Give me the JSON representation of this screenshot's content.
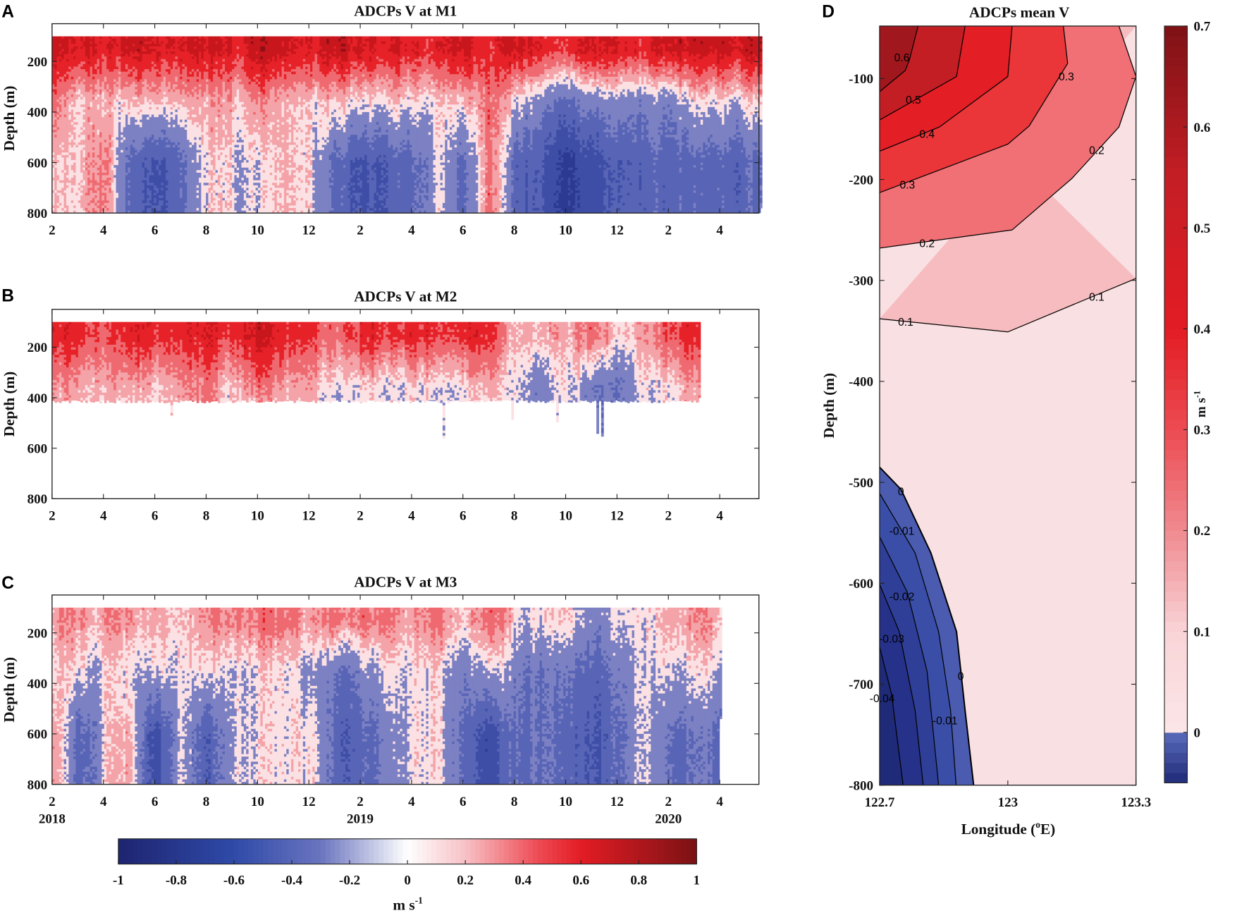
{
  "panel_letters": [
    "A",
    "B",
    "C",
    "D"
  ],
  "colorbar": {
    "ticks": [
      -1,
      -0.8,
      -0.6,
      -0.4,
      -0.2,
      0,
      0.2,
      0.4,
      0.6,
      0.8,
      1
    ],
    "tick_labels": [
      "-1",
      "-0.8",
      "-0.6",
      "-0.4",
      "-0.2",
      "0",
      "0.2",
      "0.4",
      "0.6",
      "0.8",
      "1"
    ],
    "range": [
      -1,
      1
    ],
    "unit": "m s",
    "unit_exp": "-1"
  },
  "chart_data": [
    {
      "panel": "A",
      "type": "heatmap",
      "title": "ADCPs V at M1",
      "ylabel": "Depth (m)",
      "ylim": [
        800,
        50
      ],
      "yticks": [
        200,
        400,
        600,
        800
      ],
      "ytick_labels": [
        "200",
        "400",
        "600",
        "800"
      ],
      "x_unit": "months since 2018-02",
      "xlim": [
        0,
        27.6
      ],
      "xticks": [
        0,
        2,
        4,
        6,
        8,
        10,
        12,
        14,
        16,
        18,
        20,
        22,
        24,
        26
      ],
      "xtick_labels": [
        "2",
        "4",
        "6",
        "8",
        "10",
        "12",
        "2",
        "4",
        "6",
        "8",
        "10",
        "12",
        "2",
        "4"
      ],
      "data_top_depth": 100,
      "data_end_month": 27.6,
      "data_bottom_depth": 800,
      "layer_depths": [
        150,
        350,
        650
      ],
      "monthly_v": [
        [
          0.6,
          0.6,
          0.5,
          0.6,
          0.5,
          0.5,
          0.6,
          0.5,
          0.7,
          0.6,
          0.5,
          0.6,
          0.6,
          0.5,
          0.5,
          0.5,
          0.6,
          0.4,
          0.6,
          0.5,
          0.5,
          0.6,
          0.5,
          0.5,
          0.6,
          0.6,
          0.6,
          0.6
        ],
        [
          0.3,
          0.15,
          0.15,
          0.1,
          0.1,
          0.1,
          0.2,
          0.15,
          0.3,
          0.15,
          0.1,
          0.1,
          0.1,
          0.05,
          0.05,
          0.1,
          0.1,
          0.3,
          0.05,
          -0.1,
          -0.2,
          -0.1,
          -0.1,
          -0.1,
          -0.1,
          0.05,
          0.05,
          0.05
        ],
        [
          0.1,
          0.15,
          0.3,
          -0.3,
          -0.5,
          -0.3,
          0.1,
          0.05,
          0.05,
          0.15,
          0.05,
          -0.3,
          -0.4,
          -0.4,
          -0.3,
          0.05,
          -0.3,
          0.3,
          -0.3,
          -0.4,
          -0.6,
          -0.5,
          -0.4,
          -0.3,
          -0.3,
          -0.3,
          -0.3,
          -0.3
        ]
      ]
    },
    {
      "panel": "B",
      "type": "heatmap",
      "title": "ADCPs V at M2",
      "ylabel": "Depth (m)",
      "ylim": [
        800,
        50
      ],
      "yticks": [
        200,
        400,
        600,
        800
      ],
      "ytick_labels": [
        "200",
        "400",
        "600",
        "800"
      ],
      "x_unit": "months since 2018-02",
      "xlim": [
        0,
        27.6
      ],
      "xticks": [
        0,
        2,
        4,
        6,
        8,
        10,
        12,
        14,
        16,
        18,
        20,
        22,
        24,
        26
      ],
      "xtick_labels": [
        "2",
        "4",
        "6",
        "8",
        "10",
        "12",
        "2",
        "4",
        "6",
        "8",
        "10",
        "12",
        "2",
        "4"
      ],
      "data_top_depth": 100,
      "data_end_month": 25.2,
      "data_bottom_depth": 415,
      "layer_depths": [
        150,
        350,
        650
      ],
      "monthly_v": [
        [
          0.5,
          0.5,
          0.4,
          0.5,
          0.5,
          0.45,
          0.5,
          0.5,
          0.6,
          0.5,
          0.4,
          0.3,
          0.5,
          0.45,
          0.5,
          0.5,
          0.45,
          0.5,
          0.15,
          0.2,
          0.15,
          0.4,
          0.1,
          0.2,
          0.4,
          0.45,
          0.4,
          0.4
        ],
        [
          0.25,
          0.2,
          0.2,
          0.2,
          0.15,
          0.2,
          0.25,
          0.15,
          0.3,
          0.2,
          0.15,
          0.05,
          0.1,
          0.05,
          0.1,
          0.1,
          0.05,
          0.2,
          0.05,
          -0.1,
          0.05,
          -0.1,
          -0.2,
          0.05,
          0.05,
          0.2,
          0.2,
          0.2
        ],
        [
          0.2,
          0.15,
          0.15,
          -0.2,
          0.1,
          0.15,
          0.2,
          0.1,
          -0.2,
          0.15,
          0.1,
          -0.2,
          0.05,
          0.05,
          0.05,
          0.05,
          0.05,
          0.1,
          0.05,
          -0.1,
          0.05,
          -0.1,
          -0.1,
          0.05,
          0.05,
          0.1,
          0.1,
          0.1
        ]
      ]
    },
    {
      "panel": "C",
      "type": "heatmap",
      "title": "ADCPs V at M3",
      "ylabel": "Depth (m)",
      "ylim": [
        800,
        50
      ],
      "yticks": [
        200,
        400,
        600,
        800
      ],
      "ytick_labels": [
        "200",
        "400",
        "600",
        "800"
      ],
      "x_unit": "months since 2018-02",
      "xlim": [
        0,
        27.6
      ],
      "xticks": [
        0,
        2,
        4,
        6,
        8,
        10,
        12,
        14,
        16,
        18,
        20,
        22,
        24,
        26
      ],
      "xtick_labels": [
        "2",
        "4",
        "6",
        "8",
        "10",
        "12",
        "2",
        "4",
        "6",
        "8",
        "10",
        "12",
        "2",
        "4"
      ],
      "year_labels": [
        {
          "month": 0,
          "label": "2018"
        },
        {
          "month": 12,
          "label": "2019"
        },
        {
          "month": 24,
          "label": "2020"
        }
      ],
      "data_top_depth": 100,
      "data_end_month": 26.0,
      "data_bottom_depth": 800,
      "layer_depths": [
        150,
        350,
        650
      ],
      "monthly_v": [
        [
          0.2,
          0.25,
          0.2,
          0.25,
          0.2,
          0.1,
          0.25,
          0.3,
          0.3,
          0.3,
          0.15,
          0.3,
          0.3,
          0.3,
          0.2,
          0.3,
          0.15,
          0.4,
          0.1,
          0.05,
          0.1,
          -0.1,
          0.1,
          0.05,
          0.2,
          0.25,
          0.2,
          0.2
        ],
        [
          0.1,
          0.05,
          0.05,
          0.05,
          0.05,
          0.05,
          0.05,
          0.05,
          0.05,
          0.05,
          -0.1,
          -0.2,
          -0.1,
          0.05,
          0.05,
          0.05,
          -0.1,
          0.05,
          -0.1,
          -0.2,
          -0.2,
          -0.3,
          -0.1,
          0.05,
          0.05,
          0.05,
          0.05,
          0.05
        ],
        [
          0.25,
          -0.3,
          0.05,
          0.2,
          -0.5,
          0.05,
          -0.4,
          0.05,
          0.05,
          0.05,
          0.05,
          -0.3,
          -0.3,
          -0.1,
          0.05,
          0.05,
          -0.2,
          -0.5,
          -0.2,
          -0.2,
          -0.3,
          -0.4,
          -0.2,
          0.05,
          -0.2,
          -0.2,
          -0.2,
          -0.2
        ]
      ]
    },
    {
      "panel": "D",
      "type": "contour",
      "title": "ADCPs mean V",
      "xlabel": "Longitude (",
      "xlabel_sup": "o",
      "xlabel_end": "E)",
      "ylabel": "Depth (m)",
      "xlim": [
        122.7,
        123.3
      ],
      "xticks": [
        122.7,
        123,
        123.3
      ],
      "xtick_labels": [
        "122.7",
        "123",
        "123.3"
      ],
      "ylim": [
        -800,
        -48
      ],
      "yticks": [
        -100,
        -200,
        -300,
        -400,
        -500,
        -600,
        -700,
        -800
      ],
      "ytick_labels": [
        "-100",
        "-200",
        "-300",
        "-400",
        "-500",
        "-600",
        "-700",
        "-800"
      ],
      "contours": [
        {
          "level": 0.6,
          "label": "0.6",
          "side": "top",
          "points": [
            [
              122.79,
              -48
            ],
            [
              122.77,
              -81
            ],
            [
              122.76,
              -92
            ],
            [
              122.7,
              -113
            ]
          ],
          "labels_at": [
            [
              122.752,
              -79
            ]
          ]
        },
        {
          "level": 0.5,
          "label": "0.5",
          "side": "top",
          "points": [
            [
              122.9,
              -48
            ],
            [
              122.88,
              -98
            ],
            [
              122.7,
              -141
            ]
          ],
          "labels_at": [
            [
              122.779,
              -121
            ]
          ]
        },
        {
          "level": 0.4,
          "label": "0.4",
          "side": "top",
          "points": [
            [
              123.01,
              -48
            ],
            [
              123.0,
              -98
            ],
            [
              122.84,
              -148
            ],
            [
              122.7,
              -172
            ]
          ],
          "labels_at": [
            [
              122.811,
              -155
            ]
          ]
        },
        {
          "level": 0.3,
          "label": "0.3",
          "side": "top",
          "points": [
            [
              123.13,
              -48
            ],
            [
              123.14,
              -85
            ],
            [
              123.05,
              -147
            ],
            [
              123.0,
              -165
            ],
            [
              122.7,
              -213
            ]
          ],
          "labels_at": [
            [
              122.765,
              -205
            ],
            [
              123.137,
              -98
            ]
          ]
        },
        {
          "level": 0.2,
          "label": "0.2",
          "side": "top",
          "points": [
            [
              123.26,
              -48
            ],
            [
              123.3,
              -98
            ],
            [
              123.26,
              -148
            ],
            [
              123.15,
              -199
            ],
            [
              123.01,
              -250
            ],
            [
              122.7,
              -268
            ]
          ],
          "labels_at": [
            [
              122.811,
              -263
            ],
            [
              123.208,
              -171
            ]
          ]
        },
        {
          "level": 0.1,
          "label": "0.1",
          "side": "topfull",
          "points": [
            [
              123.3,
              -298
            ],
            [
              123.0,
              -351
            ],
            [
              122.7,
              -338
            ]
          ],
          "labels_at": [
            [
              122.761,
              -341
            ],
            [
              123.208,
              -316
            ]
          ]
        },
        {
          "level": 0,
          "label": "0",
          "side": "bottom",
          "points": [
            [
              122.7,
              -485
            ],
            [
              122.75,
              -507
            ],
            [
              122.82,
              -570
            ],
            [
              122.88,
              -648
            ],
            [
              122.9,
              -726
            ],
            [
              122.92,
              -800
            ]
          ],
          "labels_at": [
            [
              122.75,
              -509
            ],
            [
              122.89,
              -692
            ]
          ]
        },
        {
          "level": -0.01,
          "label": "-0.01",
          "side": "bottom",
          "points": [
            [
              122.7,
              -511
            ],
            [
              122.783,
              -570
            ],
            [
              122.838,
              -648
            ],
            [
              122.866,
              -726
            ],
            [
              122.879,
              -800
            ]
          ],
          "labels_at": [
            [
              122.752,
              -548
            ],
            [
              122.853,
              -736
            ]
          ]
        },
        {
          "level": -0.02,
          "label": "-0.02",
          "side": "bottom",
          "points": [
            [
              122.7,
              -554
            ],
            [
              122.765,
              -609
            ],
            [
              122.811,
              -687
            ],
            [
              122.838,
              -800
            ]
          ],
          "labels_at": [
            [
              122.752,
              -613
            ]
          ]
        },
        {
          "level": -0.03,
          "label": "-0.03",
          "side": "bottom",
          "points": [
            [
              122.7,
              -601
            ],
            [
              122.746,
              -648
            ],
            [
              122.783,
              -726
            ],
            [
              122.802,
              -800
            ]
          ],
          "labels_at": [
            [
              122.728,
              -655
            ]
          ]
        },
        {
          "level": -0.04,
          "label": "-0.04",
          "side": "bottom",
          "points": [
            [
              122.7,
              -663
            ],
            [
              122.728,
              -710
            ],
            [
              122.755,
              -800
            ]
          ],
          "labels_at": [
            [
              122.706,
              -714
            ]
          ]
        }
      ],
      "fill_colors": {
        "0.6": "#a0181e",
        "0.5": "#c41e25",
        "0.4": "#e31e25",
        "0.3": "#ea3539",
        "0.2": "#f07075",
        "0.1": "#f7bcbf",
        "0": "#f9e0e3",
        "-0.01": "#4a5bb0",
        "-0.02": "#3a4ea8",
        "-0.03": "#2f3f98",
        "-0.04": "#26318a",
        "below": "#1f2a78"
      },
      "colorbar": {
        "range": [
          -0.05,
          0.7
        ],
        "ticks": [
          0,
          0.1,
          0.2,
          0.3,
          0.4,
          0.5,
          0.6,
          0.7
        ],
        "tick_labels": [
          "0",
          "0.1",
          "0.2",
          "0.3",
          "0.4",
          "0.5",
          "0.6",
          "0.7"
        ],
        "unit": "m s",
        "unit_exp": "-1"
      }
    }
  ]
}
